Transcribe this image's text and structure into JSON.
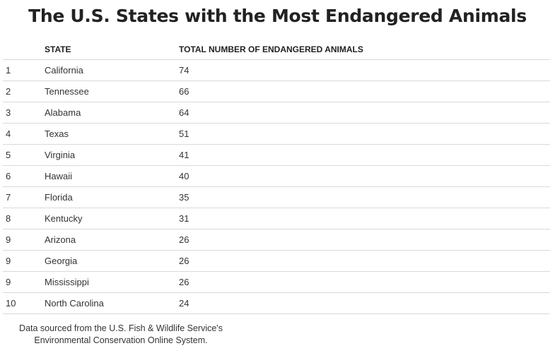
{
  "chart_data": {
    "type": "table",
    "title": "The U.S. States with the Most Endangered Animals",
    "columns": [
      "",
      "STATE",
      "TOTAL NUMBER OF ENDANGERED ANIMALS"
    ],
    "rows": [
      {
        "rank": "1",
        "state": "California",
        "total": 74
      },
      {
        "rank": "2",
        "state": "Tennessee",
        "total": 66
      },
      {
        "rank": "3",
        "state": "Alabama",
        "total": 64
      },
      {
        "rank": "4",
        "state": "Texas",
        "total": 51
      },
      {
        "rank": "5",
        "state": "Virginia",
        "total": 41
      },
      {
        "rank": "6",
        "state": "Hawaii",
        "total": 40
      },
      {
        "rank": "7",
        "state": "Florida",
        "total": 35
      },
      {
        "rank": "8",
        "state": "Kentucky",
        "total": 31
      },
      {
        "rank": "9",
        "state": "Arizona",
        "total": 26
      },
      {
        "rank": "9",
        "state": "Georgia",
        "total": 26
      },
      {
        "rank": "9",
        "state": "Mississippi",
        "total": 26
      },
      {
        "rank": "10",
        "state": "North Carolina",
        "total": 24
      }
    ]
  },
  "source": {
    "line1": "Data sourced from the U.S. Fish & Wildlife Service's",
    "line2": "Environmental Conservation Online System."
  },
  "colors": {
    "text": "#333333",
    "title": "#222222",
    "rule": "#d9d9d9"
  }
}
